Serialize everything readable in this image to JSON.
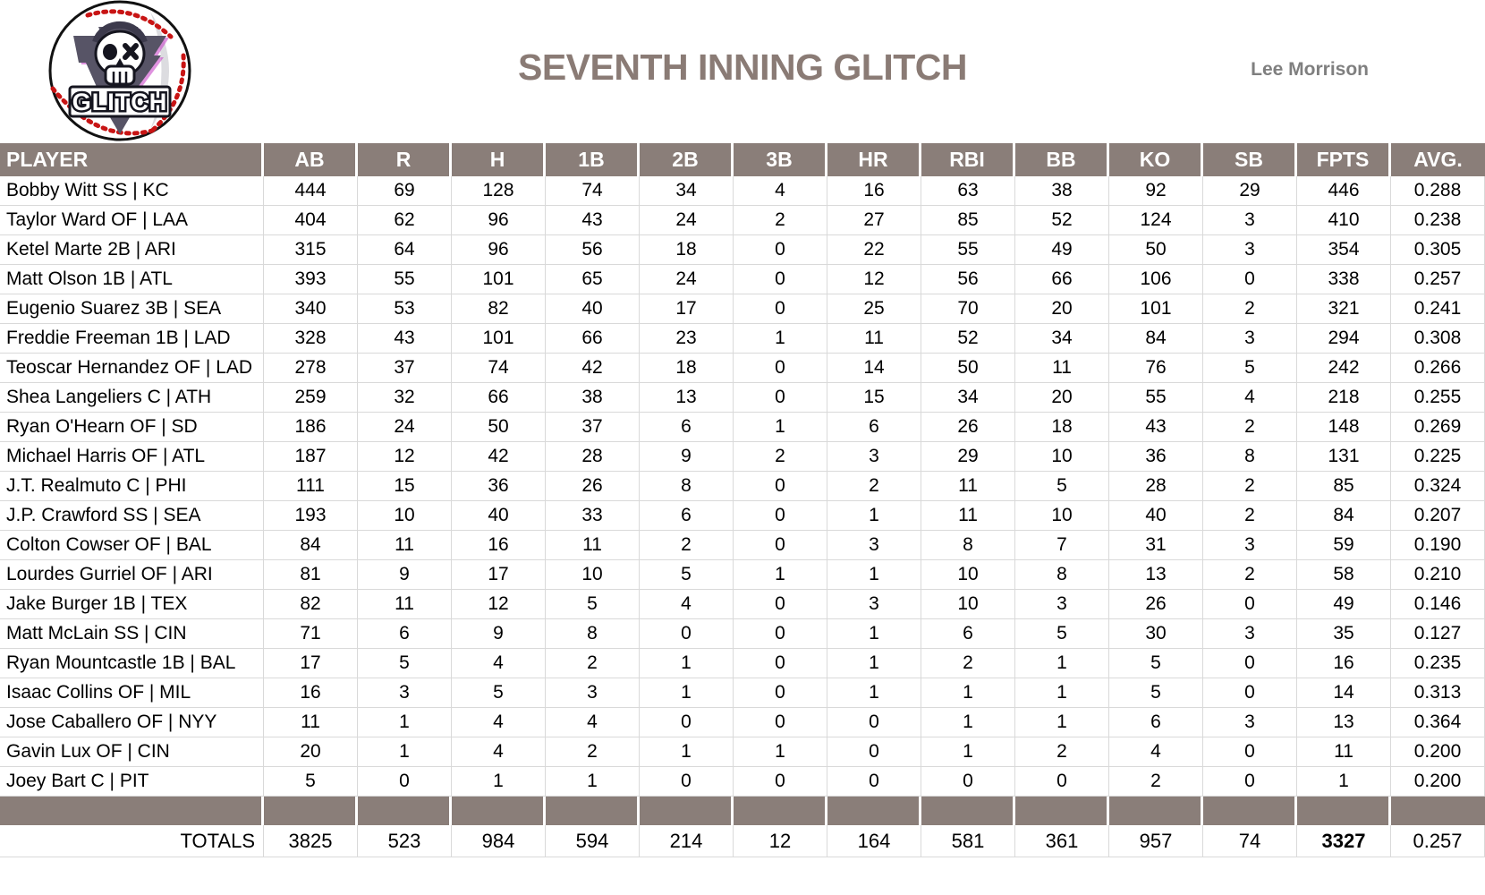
{
  "page": {
    "title": "SEVENTH INNING GLITCH",
    "owner": "Lee Morrison",
    "logo": {
      "text": "GLITCH",
      "icon": "baseball-skull-glitch-logo"
    }
  },
  "colors": {
    "header_bg": "#8A7E79",
    "title_text": "#8A7B75",
    "owner_text": "#7F7F7F",
    "grid_line": "#D9D9D9",
    "stitch_red": "#C81414",
    "triangle_slate": "#575466",
    "glitch_magenta": "#C438C4"
  },
  "chart_data": {
    "type": "table",
    "title": "SEVENTH INNING GLITCH",
    "columns": [
      "PLAYER",
      "AB",
      "R",
      "H",
      "1B",
      "2B",
      "3B",
      "HR",
      "RBI",
      "BB",
      "KO",
      "SB",
      "FPTS",
      "AVG."
    ],
    "rows": [
      [
        "Bobby Witt SS | KC",
        444,
        69,
        128,
        74,
        34,
        4,
        16,
        63,
        38,
        92,
        29,
        446,
        "0.288"
      ],
      [
        "Taylor Ward OF | LAA",
        404,
        62,
        96,
        43,
        24,
        2,
        27,
        85,
        52,
        124,
        3,
        410,
        "0.238"
      ],
      [
        "Ketel Marte 2B | ARI",
        315,
        64,
        96,
        56,
        18,
        0,
        22,
        55,
        49,
        50,
        3,
        354,
        "0.305"
      ],
      [
        "Matt Olson 1B | ATL",
        393,
        55,
        101,
        65,
        24,
        0,
        12,
        56,
        66,
        106,
        0,
        338,
        "0.257"
      ],
      [
        "Eugenio Suarez 3B | SEA",
        340,
        53,
        82,
        40,
        17,
        0,
        25,
        70,
        20,
        101,
        2,
        321,
        "0.241"
      ],
      [
        "Freddie Freeman 1B | LAD",
        328,
        43,
        101,
        66,
        23,
        1,
        11,
        52,
        34,
        84,
        3,
        294,
        "0.308"
      ],
      [
        "Teoscar Hernandez OF | LAD",
        278,
        37,
        74,
        42,
        18,
        0,
        14,
        50,
        11,
        76,
        5,
        242,
        "0.266"
      ],
      [
        "Shea Langeliers C | ATH",
        259,
        32,
        66,
        38,
        13,
        0,
        15,
        34,
        20,
        55,
        4,
        218,
        "0.255"
      ],
      [
        "Ryan O'Hearn OF | SD",
        186,
        24,
        50,
        37,
        6,
        1,
        6,
        26,
        18,
        43,
        2,
        148,
        "0.269"
      ],
      [
        "Michael Harris OF | ATL",
        187,
        12,
        42,
        28,
        9,
        2,
        3,
        29,
        10,
        36,
        8,
        131,
        "0.225"
      ],
      [
        "J.T. Realmuto C | PHI",
        111,
        15,
        36,
        26,
        8,
        0,
        2,
        11,
        5,
        28,
        2,
        85,
        "0.324"
      ],
      [
        "J.P. Crawford SS | SEA",
        193,
        10,
        40,
        33,
        6,
        0,
        1,
        11,
        10,
        40,
        2,
        84,
        "0.207"
      ],
      [
        "Colton Cowser OF | BAL",
        84,
        11,
        16,
        11,
        2,
        0,
        3,
        8,
        7,
        31,
        3,
        59,
        "0.190"
      ],
      [
        "Lourdes Gurriel OF | ARI",
        81,
        9,
        17,
        10,
        5,
        1,
        1,
        10,
        8,
        13,
        2,
        58,
        "0.210"
      ],
      [
        "Jake Burger 1B | TEX",
        82,
        11,
        12,
        5,
        4,
        0,
        3,
        10,
        3,
        26,
        0,
        49,
        "0.146"
      ],
      [
        "Matt McLain SS | CIN",
        71,
        6,
        9,
        8,
        0,
        0,
        1,
        6,
        5,
        30,
        3,
        35,
        "0.127"
      ],
      [
        "Ryan Mountcastle 1B | BAL",
        17,
        5,
        4,
        2,
        1,
        0,
        1,
        2,
        1,
        5,
        0,
        16,
        "0.235"
      ],
      [
        "Isaac Collins OF | MIL",
        16,
        3,
        5,
        3,
        1,
        0,
        1,
        1,
        1,
        5,
        0,
        14,
        "0.313"
      ],
      [
        "Jose Caballero OF | NYY",
        11,
        1,
        4,
        4,
        0,
        0,
        0,
        1,
        1,
        6,
        3,
        13,
        "0.364"
      ],
      [
        "Gavin Lux OF | CIN",
        20,
        1,
        4,
        2,
        1,
        1,
        0,
        1,
        2,
        4,
        0,
        11,
        "0.200"
      ],
      [
        "Joey Bart C | PIT",
        5,
        0,
        1,
        1,
        0,
        0,
        0,
        0,
        0,
        2,
        0,
        1,
        "0.200"
      ]
    ],
    "totals_label": "TOTALS",
    "totals": [
      3825,
      523,
      984,
      594,
      214,
      12,
      164,
      581,
      361,
      957,
      74,
      3327,
      "0.257"
    ],
    "layout": {
      "grid": "light-gray-lines",
      "header_position": "top",
      "totals_position": "bottom"
    }
  }
}
